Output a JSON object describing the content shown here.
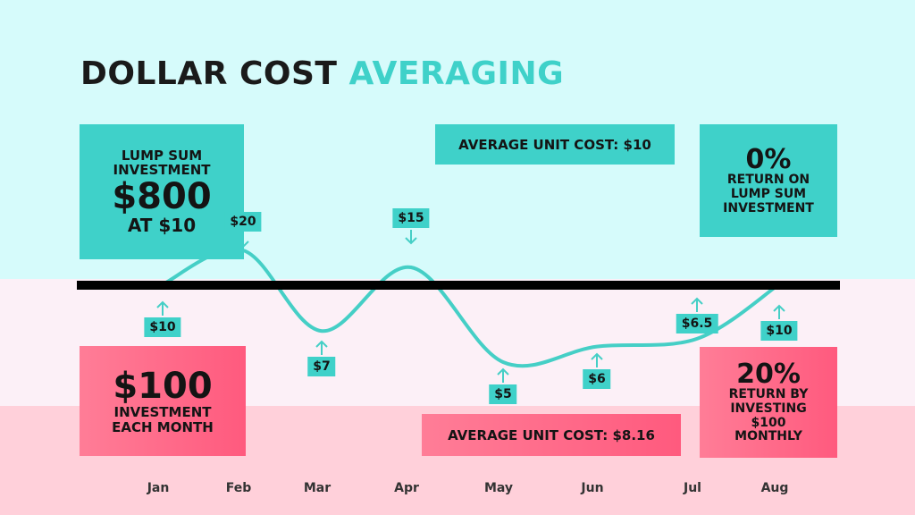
{
  "colors": {
    "band_top": "#d6fbfb",
    "band_mid": "#fcf0f7",
    "band_bot": "#ffd0da",
    "teal": "#3fd1c9",
    "line": "#45cfc6",
    "pink": "#ff6584",
    "dark": "#1a1a1a"
  },
  "title": {
    "part1": "DOLLAR COST",
    "part2": "AVERAGING"
  },
  "lump_box": {
    "line1": "LUMP SUM",
    "line2": "INVESTMENT",
    "amount": "$800",
    "line3": "AT $10"
  },
  "monthly_box": {
    "amount": "$100",
    "line1": "INVESTMENT",
    "line2": "EACH MONTH"
  },
  "avg_top": "AVERAGE UNIT COST: $10",
  "avg_bottom": "AVERAGE UNIT COST: $8.16",
  "return_lump": {
    "pct": "0%",
    "line1": "RETURN ON",
    "line2": "LUMP SUM",
    "line3": "INVESTMENT"
  },
  "return_dca": {
    "pct": "20%",
    "line1": "RETURN BY",
    "line2": "INVESTING",
    "line3": "$100",
    "line4": "MONTHLY"
  },
  "chart_data": {
    "type": "line",
    "categories": [
      "Jan",
      "Feb",
      "Mar",
      "Apr",
      "May",
      "Jun",
      "Jul",
      "Aug"
    ],
    "values": [
      10,
      20,
      7,
      15,
      5,
      6,
      6.5,
      10
    ],
    "labels": [
      "$10",
      "$20",
      "$7",
      "$15",
      "$5",
      "$6",
      "$6.5",
      "$10"
    ],
    "reference_line": 10,
    "grid": false
  }
}
